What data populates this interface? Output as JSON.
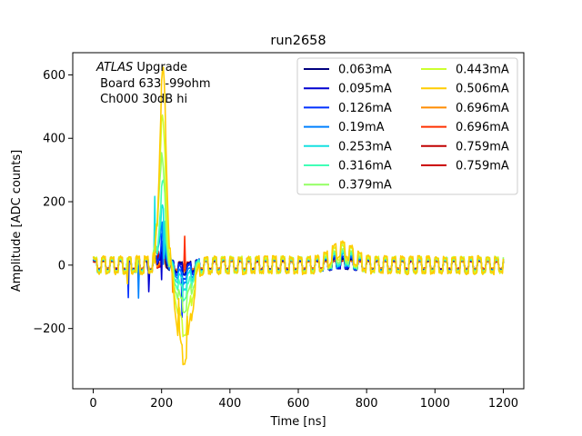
{
  "chart_data": {
    "type": "line",
    "title": "run2658",
    "xlabel": "Time [ns]",
    "ylabel": "Amplitude [ADC counts]",
    "xlim": [
      -60,
      1260
    ],
    "ylim": [
      -390,
      670
    ],
    "xticks": [
      0,
      200,
      400,
      600,
      800,
      1000,
      1200
    ],
    "yticks": [
      -200,
      0,
      200,
      400,
      600
    ],
    "xtick_labels": [
      "0",
      "200",
      "400",
      "600",
      "800",
      "1000",
      "1200"
    ],
    "ytick_labels": [
      "−200",
      "0",
      "200",
      "400",
      "600"
    ],
    "grid": false,
    "legend_position": "top-right",
    "annotation": {
      "italic": "ATLAS",
      "rest": " Upgrade",
      "line2": " Board 633 -99ohm",
      "line3": " Ch000 30dB hi"
    },
    "series": [
      {
        "name": "0.063mA",
        "color": "#00007f",
        "peak": 40,
        "undershoot": -10,
        "tail": 5,
        "noise": 20
      },
      {
        "name": "0.095mA",
        "color": "#0000d0",
        "peak": 60,
        "undershoot": -15,
        "tail": 8,
        "noise": 20
      },
      {
        "name": "0.126mA",
        "color": "#0030ff",
        "peak": 80,
        "undershoot": -25,
        "tail": 10,
        "noise": 22
      },
      {
        "name": "0.19mA",
        "color": "#0080ff",
        "peak": 120,
        "undershoot": -40,
        "tail": 15,
        "noise": 22
      },
      {
        "name": "0.253mA",
        "color": "#15e0e0",
        "peak": 170,
        "undershoot": -60,
        "tail": 20,
        "noise": 24
      },
      {
        "name": "0.316mA",
        "color": "#40ffb7",
        "peak": 250,
        "undershoot": -90,
        "tail": 25,
        "noise": 24
      },
      {
        "name": "0.379mA",
        "color": "#93ff63",
        "peak": 330,
        "undershoot": -130,
        "tail": 32,
        "noise": 26
      },
      {
        "name": "0.443mA",
        "color": "#ccff2e",
        "peak": 450,
        "undershoot": -200,
        "tail": 40,
        "noise": 28
      },
      {
        "name": "0.506mA",
        "color": "#ffcc00",
        "peak": 600,
        "undershoot": -290,
        "tail": 50,
        "noise": 30
      },
      {
        "name": "0.696mA",
        "color": "#ff8c00",
        "peak": 20,
        "undershoot": -8,
        "tail": 5,
        "noise": 15
      },
      {
        "name": "0.696mA",
        "color": "#ff3000",
        "peak": 15,
        "undershoot": -5,
        "tail": 4,
        "noise": 15
      },
      {
        "name": "0.759mA",
        "color": "#c00000",
        "peak": 12,
        "undershoot": -5,
        "tail": 3,
        "noise": 15
      },
      {
        "name": "0.759mA",
        "color": "#cc0000",
        "peak": 10,
        "undershoot": -4,
        "tail": 3,
        "noise": 15
      }
    ]
  }
}
